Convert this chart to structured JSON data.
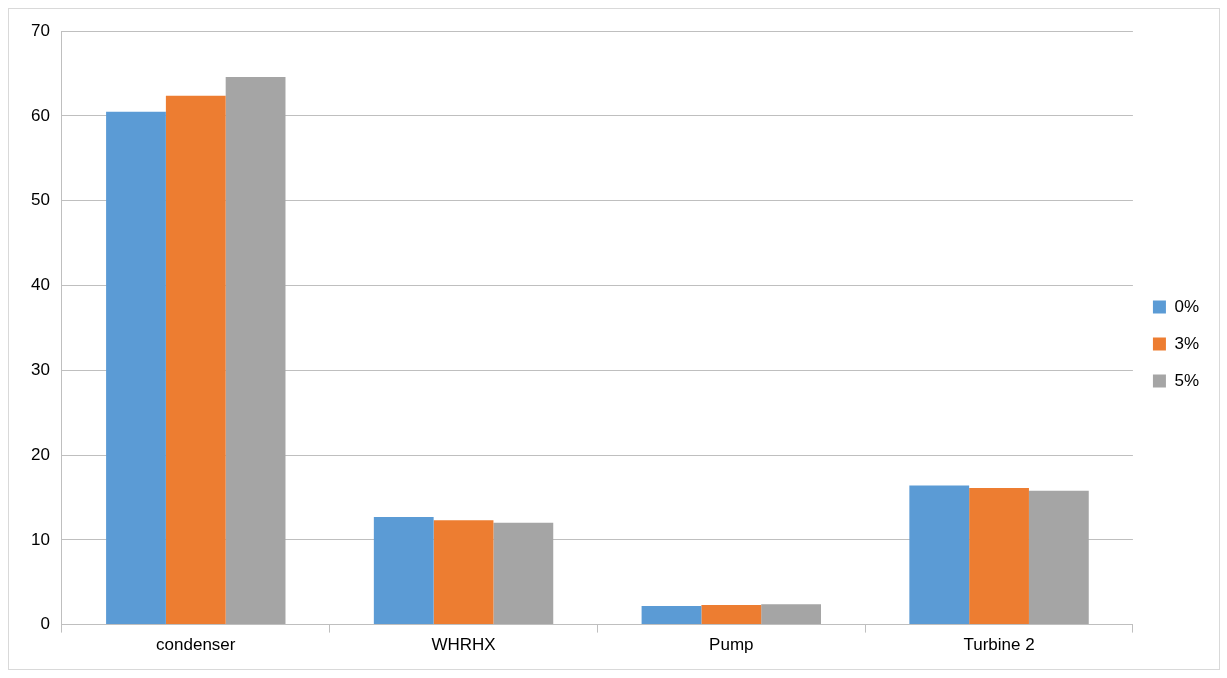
{
  "chart_data": {
    "type": "bar",
    "categories": [
      "condenser",
      "WHRHX",
      "Pump",
      "Turbine 2"
    ],
    "series": [
      {
        "name": "0%",
        "color": "#5b9bd5",
        "values": [
          60.5,
          12.7,
          2.2,
          16.4
        ]
      },
      {
        "name": "3%",
        "color": "#ed7d31",
        "values": [
          62.4,
          12.3,
          2.3,
          16.1
        ]
      },
      {
        "name": "5%",
        "color": "#a5a5a5",
        "values": [
          64.6,
          12.0,
          2.4,
          15.8
        ]
      }
    ],
    "ylim": [
      0,
      70
    ],
    "yticks": [
      0,
      10,
      20,
      30,
      40,
      50,
      60,
      70
    ],
    "grid": "y",
    "legend": "right"
  }
}
